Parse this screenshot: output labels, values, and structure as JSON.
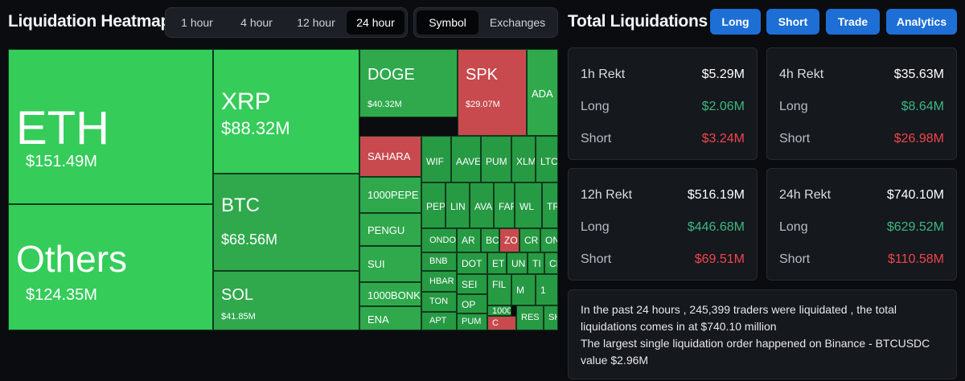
{
  "heatmap": {
    "title": "Liquidation Heatmap",
    "time_tabs": [
      "1 hour",
      "4 hour",
      "12 hour",
      "24 hour"
    ],
    "active_time_tab": "24 hour",
    "view_tabs": [
      "Symbol",
      "Exchanges"
    ],
    "active_view_tab": "Symbol",
    "colors": {
      "bright_green": "#35cc5a",
      "green": "#2fa94c",
      "dark_green": "#279a44",
      "red": "#c84a4e"
    },
    "tiles": [
      {
        "symbol": "ETH",
        "amount": "$151.49M"
      },
      {
        "symbol": "Others",
        "amount": "$124.35M"
      },
      {
        "symbol": "XRP",
        "amount": "$88.32M"
      },
      {
        "symbol": "BTC",
        "amount": "$68.56M"
      },
      {
        "symbol": "SOL",
        "amount": "$41.85M"
      },
      {
        "symbol": "DOGE",
        "amount": "$40.32M"
      },
      {
        "symbol": "SPK",
        "amount": "$29.07M"
      },
      {
        "symbol": "ADA",
        "amount": ""
      },
      {
        "symbol": "SAHARA",
        "amount": ""
      },
      {
        "symbol": "1000PEPE",
        "amount": ""
      },
      {
        "symbol": "PENGU",
        "amount": ""
      },
      {
        "symbol": "SUI",
        "amount": ""
      },
      {
        "symbol": "1000BONK",
        "amount": ""
      },
      {
        "symbol": "ENA",
        "amount": ""
      },
      {
        "symbol": "WIF",
        "amount": ""
      },
      {
        "symbol": "AAVE",
        "amount": ""
      },
      {
        "symbol": "PUM",
        "amount": ""
      },
      {
        "symbol": "XLM",
        "amount": ""
      },
      {
        "symbol": "LTC",
        "amount": ""
      },
      {
        "symbol": "PEP",
        "amount": ""
      },
      {
        "symbol": "LIN",
        "amount": ""
      },
      {
        "symbol": "AVA",
        "amount": ""
      },
      {
        "symbol": "FAF",
        "amount": ""
      },
      {
        "symbol": "WL",
        "amount": ""
      },
      {
        "symbol": "TR",
        "amount": ""
      },
      {
        "symbol": "ONDO",
        "amount": ""
      },
      {
        "symbol": "AR",
        "amount": ""
      },
      {
        "symbol": "BC",
        "amount": ""
      },
      {
        "symbol": "ZO",
        "amount": ""
      },
      {
        "symbol": "CR",
        "amount": ""
      },
      {
        "symbol": "ON",
        "amount": ""
      },
      {
        "symbol": "BNB",
        "amount": ""
      },
      {
        "symbol": "DOT",
        "amount": ""
      },
      {
        "symbol": "ET",
        "amount": ""
      },
      {
        "symbol": "UN",
        "amount": ""
      },
      {
        "symbol": "TI",
        "amount": ""
      },
      {
        "symbol": "CF",
        "amount": ""
      },
      {
        "symbol": "HBAR",
        "amount": ""
      },
      {
        "symbol": "SEI",
        "amount": ""
      },
      {
        "symbol": "FIL",
        "amount": ""
      },
      {
        "symbol": "M",
        "amount": ""
      },
      {
        "symbol": "1",
        "amount": ""
      },
      {
        "symbol": "TON",
        "amount": ""
      },
      {
        "symbol": "OP",
        "amount": ""
      },
      {
        "symbol": "1000",
        "amount": ""
      },
      {
        "symbol": "APT",
        "amount": ""
      },
      {
        "symbol": "PUM",
        "amount": ""
      },
      {
        "symbol": "C",
        "amount": ""
      },
      {
        "symbol": "RES",
        "amount": ""
      },
      {
        "symbol": "SH",
        "amount": ""
      }
    ]
  },
  "total": {
    "title": "Total Liquidations",
    "buttons": [
      "Long",
      "Short",
      "Trade",
      "Analytics"
    ],
    "cards": [
      {
        "label": "1h Rekt",
        "total": "$5.29M",
        "long_label": "Long",
        "long": "$2.06M",
        "short_label": "Short",
        "short": "$3.24M"
      },
      {
        "label": "4h Rekt",
        "total": "$35.63M",
        "long_label": "Long",
        "long": "$8.64M",
        "short_label": "Short",
        "short": "$26.98M"
      },
      {
        "label": "12h Rekt",
        "total": "$516.19M",
        "long_label": "Long",
        "long": "$446.68M",
        "short_label": "Short",
        "short": "$69.51M"
      },
      {
        "label": "24h Rekt",
        "total": "$740.10M",
        "long_label": "Long",
        "long": "$629.52M",
        "short_label": "Short",
        "short": "$110.58M"
      }
    ],
    "summary": {
      "line1": "In the past 24 hours , 245,399 traders were liquidated , the total liquidations comes in at $740.10 million",
      "line2": "The largest single liquidation order happened on Binance - BTCUSDC value $2.96M"
    }
  }
}
